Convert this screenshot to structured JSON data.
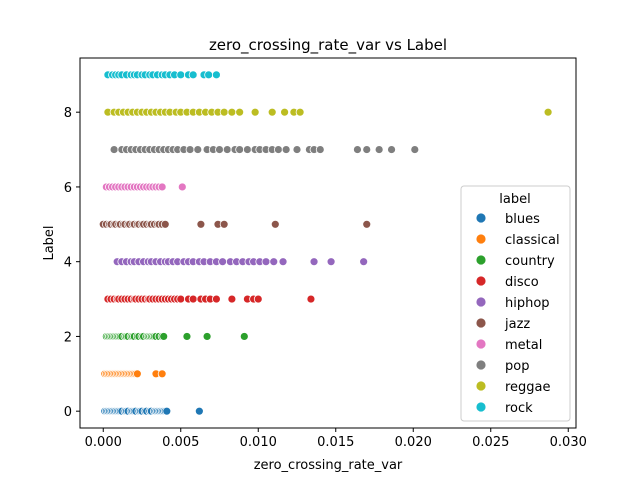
{
  "chart_data": {
    "type": "scatter",
    "title": "zero_crossing_rate_var vs Label",
    "xlabel": "zero_crossing_rate_var",
    "ylabel": "Label",
    "xlim": [
      -0.0015,
      0.0305
    ],
    "ylim": [
      -0.45,
      9.45
    ],
    "x_ticks": [
      0.0,
      0.005,
      0.01,
      0.015,
      0.02,
      0.025,
      0.03
    ],
    "x_tick_labels": [
      "0.000",
      "0.005",
      "0.010",
      "0.015",
      "0.020",
      "0.025",
      "0.030"
    ],
    "y_ticks": [
      0,
      2,
      4,
      6,
      8
    ],
    "y_tick_labels": [
      "0",
      "2",
      "4",
      "6",
      "8"
    ],
    "grid": false,
    "legend_title": "label",
    "legend_position": "center-right",
    "series": [
      {
        "name": "blues",
        "label_value": 0,
        "color": "#1f77b4",
        "x": [
          0.0001,
          0.0002,
          0.0003,
          0.0004,
          0.0005,
          0.0006,
          0.0007,
          0.0008,
          0.0009,
          0.001,
          0.0011,
          0.0012,
          0.0014,
          0.0015,
          0.0016,
          0.0018,
          0.0019,
          0.002,
          0.0021,
          0.0023,
          0.0024,
          0.0025,
          0.0027,
          0.0028,
          0.003,
          0.0031,
          0.0033,
          0.0034,
          0.0035,
          0.0036,
          0.0037,
          0.0038,
          0.0039,
          0.004,
          0.0041,
          0.0062
        ]
      },
      {
        "name": "classical",
        "label_value": 1,
        "color": "#ff7f0e",
        "x": [
          0.0001,
          0.0002,
          0.0003,
          0.0004,
          0.0005,
          0.0006,
          0.0007,
          0.0008,
          0.0009,
          0.001,
          0.0011,
          0.0012,
          0.0013,
          0.0014,
          0.0015,
          0.0016,
          0.0017,
          0.0018,
          0.0019,
          0.002,
          0.0021,
          0.0022,
          0.0034,
          0.0038
        ]
      },
      {
        "name": "country",
        "label_value": 2,
        "color": "#2ca02c",
        "x": [
          0.0002,
          0.0003,
          0.0004,
          0.0005,
          0.0006,
          0.0007,
          0.0008,
          0.0009,
          0.001,
          0.0011,
          0.0012,
          0.0014,
          0.0015,
          0.0016,
          0.0018,
          0.0019,
          0.002,
          0.0022,
          0.0023,
          0.0025,
          0.0026,
          0.0028,
          0.0029,
          0.003,
          0.0031,
          0.0032,
          0.0033,
          0.0034,
          0.0036,
          0.0038,
          0.0039,
          0.0054,
          0.0067,
          0.0091
        ]
      },
      {
        "name": "disco",
        "label_value": 3,
        "color": "#d62728",
        "x": [
          0.0003,
          0.0005,
          0.0007,
          0.0009,
          0.001,
          0.0012,
          0.0014,
          0.0016,
          0.0018,
          0.002,
          0.0021,
          0.0023,
          0.0025,
          0.0027,
          0.0029,
          0.003,
          0.0032,
          0.0034,
          0.0036,
          0.0038,
          0.004,
          0.0042,
          0.0044,
          0.0046,
          0.0048,
          0.005,
          0.0055,
          0.0058,
          0.0063,
          0.0066,
          0.0069,
          0.0073,
          0.0083,
          0.0093,
          0.0097,
          0.01,
          0.0134
        ]
      },
      {
        "name": "hiphop",
        "label_value": 4,
        "color": "#9467bd",
        "x": [
          0.0009,
          0.0012,
          0.0015,
          0.0018,
          0.002,
          0.0023,
          0.0026,
          0.0029,
          0.0031,
          0.0034,
          0.0037,
          0.004,
          0.0042,
          0.0045,
          0.0048,
          0.0052,
          0.0055,
          0.0058,
          0.0062,
          0.0065,
          0.0069,
          0.0073,
          0.0077,
          0.0082,
          0.0086,
          0.009,
          0.0094,
          0.0097,
          0.0101,
          0.0105,
          0.011,
          0.0116,
          0.0136,
          0.0147,
          0.0168
        ]
      },
      {
        "name": "jazz",
        "label_value": 5,
        "color": "#8c564b",
        "x": [
          0.0,
          0.0002,
          0.0004,
          0.0005,
          0.0007,
          0.0008,
          0.001,
          0.0011,
          0.0013,
          0.0014,
          0.0016,
          0.0017,
          0.0019,
          0.002,
          0.0022,
          0.0023,
          0.0025,
          0.0026,
          0.0028,
          0.003,
          0.0031,
          0.0033,
          0.0035,
          0.0036,
          0.0038,
          0.004,
          0.0063,
          0.0074,
          0.0078,
          0.0111,
          0.017
        ]
      },
      {
        "name": "metal",
        "label_value": 6,
        "color": "#e377c2",
        "x": [
          0.0002,
          0.0004,
          0.0006,
          0.0008,
          0.001,
          0.0012,
          0.0014,
          0.0016,
          0.0018,
          0.002,
          0.0022,
          0.0024,
          0.0026,
          0.0028,
          0.003,
          0.0032,
          0.0034,
          0.0036,
          0.0038,
          0.0051
        ]
      },
      {
        "name": "pop",
        "label_value": 7,
        "color": "#7f7f7f",
        "x": [
          0.0007,
          0.0012,
          0.0015,
          0.0018,
          0.0021,
          0.0024,
          0.0027,
          0.003,
          0.0033,
          0.0036,
          0.0039,
          0.0042,
          0.0045,
          0.0048,
          0.0052,
          0.0056,
          0.0061,
          0.0067,
          0.0071,
          0.0075,
          0.008,
          0.0085,
          0.0088,
          0.0093,
          0.0098,
          0.0101,
          0.0105,
          0.0109,
          0.0113,
          0.0118,
          0.0125,
          0.0133,
          0.0136,
          0.014,
          0.0164,
          0.017,
          0.0178,
          0.0186,
          0.0201
        ]
      },
      {
        "name": "reggae",
        "label_value": 8,
        "color": "#bcbd22",
        "x": [
          0.0003,
          0.0007,
          0.001,
          0.0013,
          0.0016,
          0.0019,
          0.0022,
          0.0025,
          0.0028,
          0.0031,
          0.0034,
          0.0037,
          0.004,
          0.0043,
          0.0047,
          0.005,
          0.0054,
          0.0058,
          0.0062,
          0.0066,
          0.007,
          0.0074,
          0.0078,
          0.0083,
          0.0088,
          0.0098,
          0.0109,
          0.0117,
          0.0123,
          0.0127,
          0.0287
        ]
      },
      {
        "name": "rock",
        "label_value": 9,
        "color": "#17becf",
        "x": [
          0.0003,
          0.0006,
          0.0008,
          0.001,
          0.0012,
          0.0015,
          0.0018,
          0.002,
          0.0022,
          0.0025,
          0.0027,
          0.003,
          0.0032,
          0.0035,
          0.0038,
          0.004,
          0.0043,
          0.0046,
          0.005,
          0.0055,
          0.0058,
          0.0065,
          0.0068,
          0.0073
        ]
      }
    ]
  }
}
